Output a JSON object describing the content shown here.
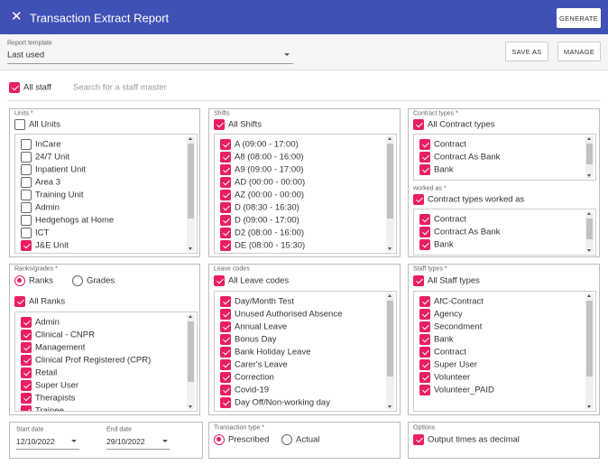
{
  "header": {
    "title": "Transaction Extract Report",
    "generate": "GENERATE"
  },
  "template": {
    "label": "Report template",
    "value": "Last used",
    "save_as": "SAVE AS",
    "manage": "MANAGE"
  },
  "staff": {
    "all_staff": "All staff",
    "all_staff_checked": true,
    "search_placeholder": "Search for a staff master"
  },
  "units": {
    "label": "Units *",
    "all": "All Units",
    "all_checked": false,
    "items": [
      {
        "label": "InCare",
        "checked": false
      },
      {
        "label": "24/7 Unit",
        "checked": false
      },
      {
        "label": "Inpatient Unit",
        "checked": false
      },
      {
        "label": "Area 3",
        "checked": false
      },
      {
        "label": "Training Unit",
        "checked": false
      },
      {
        "label": "Admin",
        "checked": false
      },
      {
        "label": "Hedgehogs at Home",
        "checked": false
      },
      {
        "label": "ICT",
        "checked": false
      },
      {
        "label": "J&E Unit",
        "checked": true
      }
    ]
  },
  "shifts": {
    "label": "Shifts",
    "all": "All Shifts",
    "all_checked": true,
    "items": [
      {
        "label": "A (09:00 - 17:00)",
        "checked": true
      },
      {
        "label": "A8 (08:00 - 16:00)",
        "checked": true
      },
      {
        "label": "A9 (09:00 - 17:00)",
        "checked": true
      },
      {
        "label": "AD (00:00 - 00:00)",
        "checked": true
      },
      {
        "label": "AZ (00:00 - 00:00)",
        "checked": true
      },
      {
        "label": "D (08:30 - 16:30)",
        "checked": true
      },
      {
        "label": "D (09:00 - 17:00)",
        "checked": true
      },
      {
        "label": "D2 (08:00 - 16:00)",
        "checked": true
      },
      {
        "label": "DE (08:00 - 15:30)",
        "checked": true
      }
    ]
  },
  "contract_types": {
    "label": "Contract types *",
    "all": "All Contract types",
    "all_checked": true,
    "items": [
      {
        "label": "Contract",
        "checked": true
      },
      {
        "label": "Contract As Bank",
        "checked": true
      },
      {
        "label": "Bank",
        "checked": true
      }
    ]
  },
  "worked_as": {
    "label": "worked as *",
    "all": "Contract types worked as",
    "all_checked": true,
    "items": [
      {
        "label": "Contract",
        "checked": true
      },
      {
        "label": "Contract As Bank",
        "checked": true
      },
      {
        "label": "Bank",
        "checked": true
      }
    ]
  },
  "ranks": {
    "label": "Ranks/grades *",
    "radios": [
      {
        "label": "Ranks",
        "selected": true
      },
      {
        "label": "Grades",
        "selected": false
      }
    ],
    "all": "All Ranks",
    "all_checked": true,
    "items": [
      {
        "label": "Admin",
        "checked": true
      },
      {
        "label": "Clinical - CNPR",
        "checked": true
      },
      {
        "label": "Management",
        "checked": true
      },
      {
        "label": "Clinical Prof Registered (CPR)",
        "checked": true
      },
      {
        "label": "Retail",
        "checked": true
      },
      {
        "label": "Super User",
        "checked": true
      },
      {
        "label": "Therapists",
        "checked": true
      },
      {
        "label": "Trainee",
        "checked": true
      }
    ]
  },
  "leave_codes": {
    "label": "Leave codes",
    "all": "All Leave codes",
    "all_checked": true,
    "items": [
      {
        "label": "Day/Month Test",
        "checked": true
      },
      {
        "label": "Unused Authorised Absence",
        "checked": true
      },
      {
        "label": "Annual Leave",
        "checked": true
      },
      {
        "label": "Bonus Day",
        "checked": true
      },
      {
        "label": "Bank Holiday Leave",
        "checked": true
      },
      {
        "label": "Carer's Leave",
        "checked": true
      },
      {
        "label": "Correction",
        "checked": true
      },
      {
        "label": "Covid-19",
        "checked": true
      },
      {
        "label": "Day Off/Non-working day",
        "checked": true
      }
    ]
  },
  "staff_types": {
    "label": "Staff types *",
    "all": "All Staff types",
    "all_checked": true,
    "items": [
      {
        "label": "AfC-Contract",
        "checked": true
      },
      {
        "label": "Agency",
        "checked": true
      },
      {
        "label": "Secondment",
        "checked": true
      },
      {
        "label": "Bank",
        "checked": true
      },
      {
        "label": "Contract",
        "checked": true
      },
      {
        "label": "Super User",
        "checked": true
      },
      {
        "label": "Volunteer",
        "checked": true
      },
      {
        "label": "Volunteer_PAID",
        "checked": true
      }
    ]
  },
  "dates": {
    "start_label": "Start date",
    "start": "12/10/2022",
    "end_label": "End date",
    "end": "29/10/2022"
  },
  "transaction": {
    "label": "Transaction type *",
    "radios": [
      {
        "label": "Prescribed",
        "selected": true
      },
      {
        "label": "Actual",
        "selected": false
      }
    ]
  },
  "options": {
    "label": "Options",
    "output": "Output times as decimal",
    "output_checked": true
  }
}
